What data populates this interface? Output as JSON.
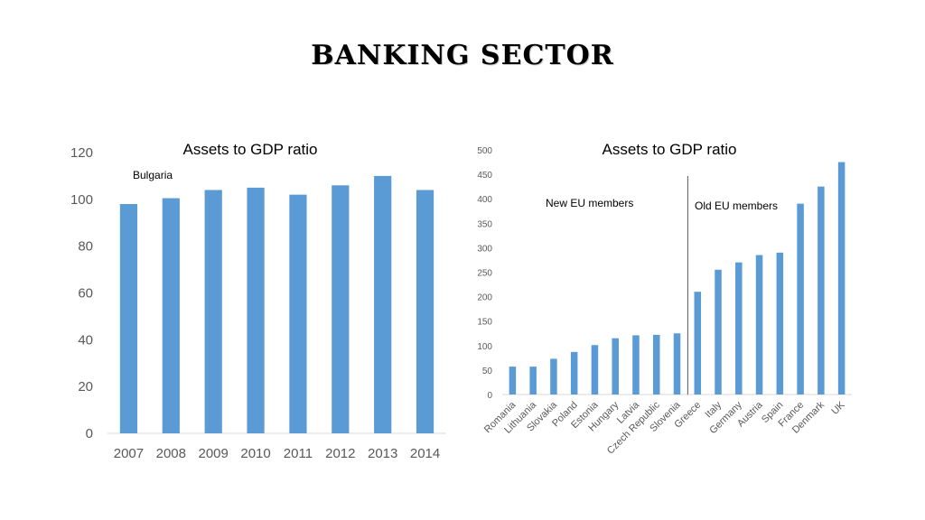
{
  "slide": {
    "title": "Banking sector"
  },
  "colors": {
    "bar": "#5b9bd5",
    "axis": "#d9d9d9",
    "divider": "#595959"
  },
  "chart_data": [
    {
      "type": "bar",
      "title": "Assets to GDP ratio",
      "annotation": "Bulgaria",
      "categories": [
        "2007",
        "2008",
        "2009",
        "2010",
        "2011",
        "2012",
        "2013",
        "2014"
      ],
      "series": [
        {
          "values": [
            98,
            100.5,
            104,
            105,
            102,
            106,
            110,
            104
          ]
        }
      ],
      "ylim": [
        0,
        120
      ],
      "yticks": [
        0,
        20,
        40,
        60,
        80,
        100,
        120
      ],
      "grid": false,
      "xlabel": "",
      "ylabel": ""
    },
    {
      "type": "bar",
      "title": "Assets to GDP ratio",
      "groups": [
        {
          "label": "New EU members"
        },
        {
          "label": "Old EU members"
        }
      ],
      "categories": [
        "Romania",
        "Lithuania",
        "Slovakia",
        "Poland",
        "Estonia",
        "Hungary",
        "Latvia",
        "Czech Republic",
        "Slovenia",
        "Greece",
        "Italy",
        "Germany",
        "Austria",
        "Spain",
        "France",
        "Denmark",
        "UK"
      ],
      "series": [
        {
          "values": [
            57,
            57,
            73,
            87,
            101,
            115,
            121,
            122,
            125,
            210,
            255,
            270,
            285,
            290,
            390,
            425,
            475
          ]
        }
      ],
      "divider_after_index": 8,
      "ylim": [
        0,
        500
      ],
      "yticks": [
        0,
        50,
        100,
        150,
        200,
        250,
        300,
        350,
        400,
        450,
        500
      ],
      "grid": false,
      "xlabel": "",
      "ylabel": ""
    }
  ]
}
